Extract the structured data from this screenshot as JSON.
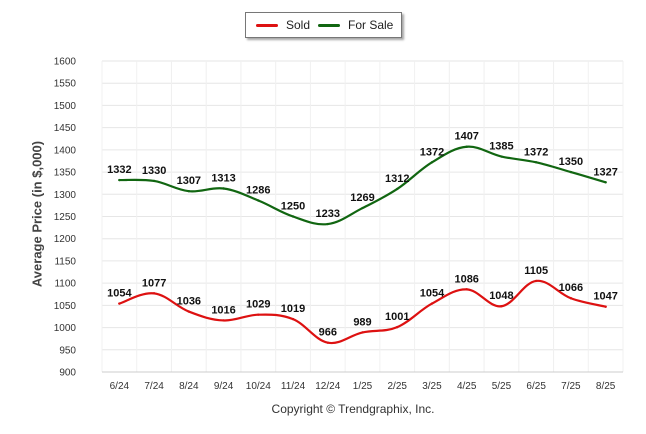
{
  "legend": {
    "items": [
      {
        "name": "Sold",
        "color": "#dd1111"
      },
      {
        "name": "For Sale",
        "color": "#116611"
      }
    ]
  },
  "copyright": "Copyright © Trendgraphix, Inc.",
  "chart_data": {
    "type": "line",
    "title": "",
    "xlabel": "",
    "ylabel": "Average Price (in $,000)",
    "ylim": [
      900,
      1600
    ],
    "yticks": [
      900,
      950,
      1000,
      1050,
      1100,
      1150,
      1200,
      1250,
      1300,
      1350,
      1400,
      1450,
      1500,
      1550,
      1600
    ],
    "grid": true,
    "legend_position": "top-center",
    "categories": [
      "6/24",
      "7/24",
      "8/24",
      "9/24",
      "10/24",
      "11/24",
      "12/24",
      "1/25",
      "2/25",
      "3/25",
      "4/25",
      "5/25",
      "6/25",
      "7/25",
      "8/25"
    ],
    "series": [
      {
        "name": "Sold",
        "color": "#dd1111",
        "values": [
          1054,
          1077,
          1036,
          1016,
          1029,
          1019,
          966,
          989,
          1001,
          1054,
          1086,
          1048,
          1105,
          1066,
          1047
        ]
      },
      {
        "name": "For Sale",
        "color": "#116611",
        "values": [
          1332,
          1330,
          1307,
          1313,
          1286,
          1250,
          1233,
          1269,
          1312,
          1372,
          1407,
          1385,
          1372,
          1350,
          1327
        ]
      }
    ]
  }
}
